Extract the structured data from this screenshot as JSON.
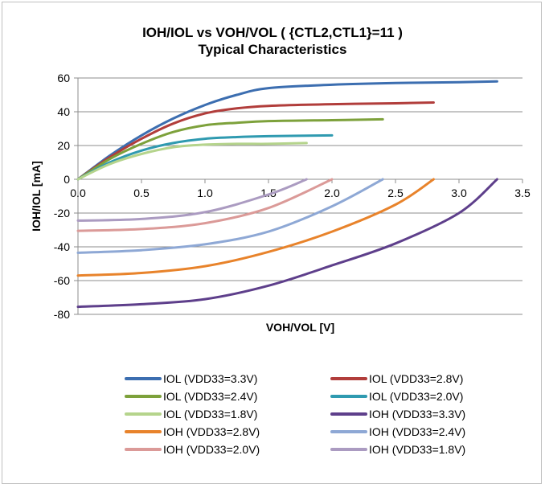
{
  "chart_data": {
    "type": "line",
    "title": "IOH/IOL vs VOH/VOL  ( {CTL2,CTL1}=11 )",
    "subtitle": "Typical  Characteristics",
    "xlabel": "VOH/VOL [V]",
    "ylabel": "IOH/IOL [mA]",
    "xlim": [
      0,
      3.5
    ],
    "ylim": [
      -80,
      60
    ],
    "xticks": [
      "0.0",
      "0.5",
      "1.0",
      "1.5",
      "2.0",
      "2.5",
      "3.0",
      "3.5"
    ],
    "yticks": [
      "60",
      "40",
      "20",
      "0",
      "-20",
      "-40",
      "-60",
      "-80"
    ],
    "grid": "horizontal",
    "legend_position": "bottom",
    "series": [
      {
        "name": "IOL (VDD33=3.3V)",
        "color": "#3c6eb0",
        "x": [
          0,
          0.25,
          0.5,
          0.75,
          1.0,
          1.25,
          1.5,
          2.0,
          2.5,
          3.0,
          3.3
        ],
        "y": [
          0,
          14,
          26,
          36,
          44,
          50,
          54,
          56,
          57,
          57.5,
          58
        ]
      },
      {
        "name": "IOL (VDD33=2.8V)",
        "color": "#b13d3b",
        "x": [
          0,
          0.25,
          0.5,
          0.75,
          1.0,
          1.25,
          1.5,
          2.0,
          2.5,
          2.8
        ],
        "y": [
          0,
          13,
          24,
          33,
          39,
          42,
          43.5,
          44.5,
          45,
          45.5
        ]
      },
      {
        "name": "IOL (VDD33=2.4V)",
        "color": "#7da13b",
        "x": [
          0,
          0.25,
          0.5,
          0.75,
          1.0,
          1.25,
          1.5,
          2.0,
          2.4
        ],
        "y": [
          0,
          12,
          21,
          28,
          32,
          33.5,
          34.5,
          35,
          35.5
        ]
      },
      {
        "name": "IOL (VDD33=2.0V)",
        "color": "#2f9ab0",
        "x": [
          0,
          0.25,
          0.5,
          0.75,
          1.0,
          1.25,
          1.5,
          2.0
        ],
        "y": [
          0,
          10,
          17,
          21.5,
          24,
          25,
          25.5,
          26
        ]
      },
      {
        "name": "IOL (VDD33=1.8V)",
        "color": "#b5d48c",
        "x": [
          0,
          0.25,
          0.5,
          0.75,
          1.0,
          1.25,
          1.5,
          1.8
        ],
        "y": [
          0,
          9,
          15,
          19,
          20.5,
          21,
          21,
          21.5
        ]
      },
      {
        "name": "IOH (VDD33=3.3V)",
        "color": "#5e3f8b",
        "x": [
          0,
          0.5,
          1.0,
          1.5,
          2.0,
          2.5,
          3.0,
          3.3
        ],
        "y": [
          -75.5,
          -74,
          -71,
          -63,
          -51,
          -38,
          -20,
          0
        ]
      },
      {
        "name": "IOH (VDD33=2.8V)",
        "color": "#e8832b",
        "x": [
          0,
          0.5,
          1.0,
          1.5,
          2.0,
          2.5,
          2.8
        ],
        "y": [
          -57,
          -55.5,
          -51.5,
          -43,
          -31,
          -15,
          0
        ]
      },
      {
        "name": "IOH (VDD33=2.4V)",
        "color": "#8ea8d5",
        "x": [
          0,
          0.5,
          1.0,
          1.5,
          2.0,
          2.4
        ],
        "y": [
          -43.5,
          -42,
          -38.5,
          -31,
          -16,
          0
        ]
      },
      {
        "name": "IOH (VDD33=2.0V)",
        "color": "#db9a98",
        "x": [
          0,
          0.5,
          1.0,
          1.5,
          2.0
        ],
        "y": [
          -30.5,
          -29.5,
          -26,
          -17,
          0
        ]
      },
      {
        "name": "IOH (VDD33=1.8V)",
        "color": "#ab9bc1",
        "x": [
          0,
          0.5,
          1.0,
          1.5,
          1.8
        ],
        "y": [
          -24.5,
          -23.5,
          -19.5,
          -9,
          0
        ]
      }
    ]
  }
}
